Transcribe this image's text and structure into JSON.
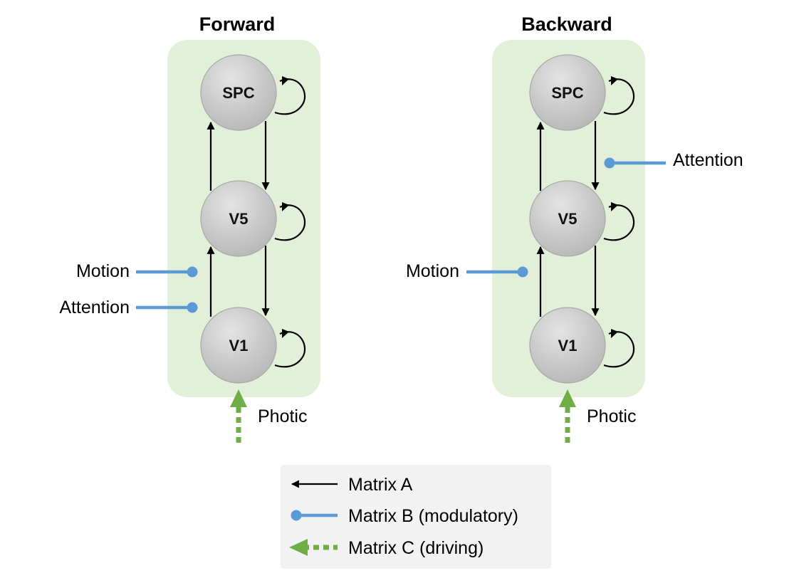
{
  "colors": {
    "panel_fill": "#e2efd9",
    "node_fill_light": "#e2e2e2",
    "node_fill_dark": "#b6b6b6",
    "node_stroke": "#a6a6a6",
    "matrix_a": "#000000",
    "matrix_b": "#5b9bd5",
    "matrix_c": "#70ad47",
    "legend_fill": "#f2f2f2"
  },
  "panels": {
    "forward": {
      "title": "Forward",
      "nodes": {
        "top": "SPC",
        "middle": "V5",
        "bottom": "V1"
      },
      "inputs": {
        "motion": "Motion",
        "attention": "Attention",
        "photic": "Photic"
      }
    },
    "backward": {
      "title": "Backward",
      "nodes": {
        "top": "SPC",
        "middle": "V5",
        "bottom": "V1"
      },
      "inputs": {
        "attention": "Attention",
        "motion": "Motion",
        "photic": "Photic"
      }
    }
  },
  "legend": {
    "matrix_a": "Matrix A",
    "matrix_b": "Matrix B (modulatory)",
    "matrix_c": "Matrix C (driving)"
  }
}
